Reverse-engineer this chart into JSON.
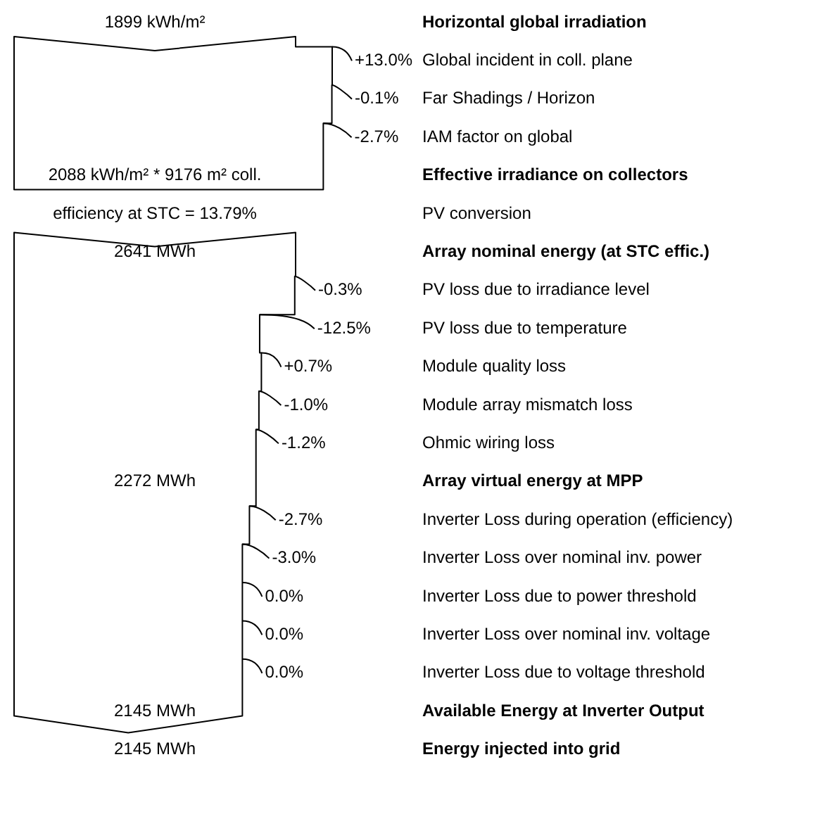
{
  "chart_data": {
    "type": "other",
    "categories": [
      "Horizontal global irradiation",
      "Global incident in coll. plane",
      "Far Shadings / Horizon",
      "IAM factor on global",
      "Effective irradiance on collectors",
      "PV conversion",
      "Array nominal energy (at STC effic.)",
      "PV loss due to irradiance level",
      "PV loss due to temperature",
      "Module quality loss",
      "Module array mismatch loss",
      "Ohmic wiring loss",
      "Array virtual energy at MPP",
      "Inverter Loss during operation (efficiency)",
      "Inverter Loss over nominal inv. power",
      "Inverter Loss due to power threshold",
      "Inverter Loss over nominal inv. voltage",
      "Inverter Loss due to voltage threshold",
      "Available Energy at Inverter Output",
      "Energy injected into grid"
    ],
    "series": [
      {
        "color": "#000000",
        "values": [
          1899,
          null,
          null,
          null,
          2088,
          null,
          2641,
          null,
          null,
          null,
          null,
          null,
          2272,
          null,
          null,
          null,
          null,
          null,
          2145,
          2145
        ],
        "value_labels": [
          "1899 kWh/m²",
          null,
          null,
          null,
          "2088 kWh/m² * 9176 m² coll.",
          null,
          "2641 MWh",
          null,
          null,
          null,
          null,
          null,
          "2272 MWh",
          null,
          null,
          null,
          null,
          null,
          "2145 MWh",
          "2145 MWh"
        ]
      },
      {
        "color": "#000000",
        "values": [
          null,
          13.0,
          -0.1,
          -2.7,
          null,
          null,
          null,
          -0.3,
          -12.5,
          0.7,
          -1.0,
          -1.2,
          null,
          -2.7,
          -3.0,
          0.0,
          0.0,
          0.0,
          null,
          null
        ],
        "value_labels": [
          null,
          "+13.0%",
          "-0.1%",
          "-2.7%",
          null,
          null,
          null,
          "-0.3%",
          "-12.5%",
          "+0.7%",
          "-1.0%",
          "-1.2%",
          null,
          "-2.7%",
          "-3.0%",
          "0.0%",
          "0.0%",
          "0.0%",
          null,
          null
        ]
      },
      {
        "color": "#000000",
        "values": [
          null,
          null,
          null,
          null,
          null,
          13.79,
          null,
          null,
          null,
          null,
          null,
          null,
          null,
          null,
          null,
          null,
          null,
          null,
          null,
          null
        ],
        "value_labels": [
          null,
          null,
          null,
          null,
          null,
          "efficiency at STC = 13.79%",
          null,
          null,
          null,
          null,
          null,
          null,
          null,
          null,
          null,
          null,
          null,
          null,
          null,
          null
        ]
      }
    ]
  }
}
